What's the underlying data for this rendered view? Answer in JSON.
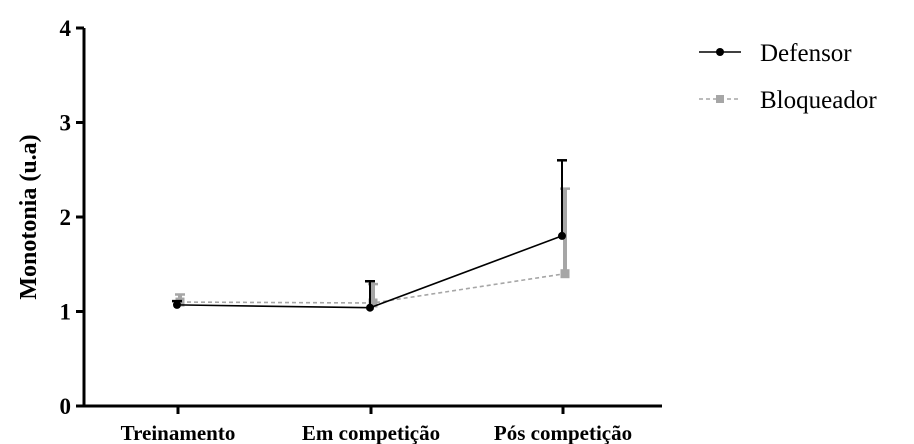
{
  "chart_data": {
    "type": "line",
    "categories": [
      "Treinamento",
      "Em competição",
      "Pós competição"
    ],
    "ylabel": "Monotonia (u.a)",
    "ylim": [
      0,
      4
    ],
    "yticks": [
      "0",
      "1",
      "2",
      "3",
      "4"
    ],
    "legend_position": "top-right",
    "series": [
      {
        "name": "Defensor",
        "values": [
          1.07,
          1.04,
          1.8
        ],
        "error": [
          0.04,
          0.28,
          0.8
        ],
        "color": "#000000",
        "style": "solid",
        "marker": "circle"
      },
      {
        "name": "Bloqueador",
        "values": [
          1.1,
          1.09,
          1.4
        ],
        "error": [
          0.08,
          0.2,
          0.9
        ],
        "color": "#a6a6a6",
        "style": "dashed",
        "marker": "square"
      }
    ]
  }
}
